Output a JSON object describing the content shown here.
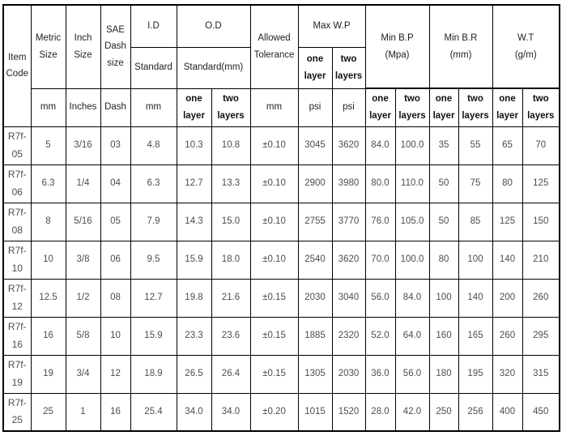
{
  "colors": {
    "border": "#000000",
    "header_text": "#1f1f1f",
    "data_text": "#4d4d4d",
    "background": "#ffffff"
  },
  "header": {
    "item_code": "Item\nCode",
    "metric_size": "Metric\nSize",
    "inch_size": "Inch\nSize",
    "sae_dash_size": "SAE\nDash\nsize",
    "id": "I.D",
    "id_standard": "Standard",
    "od": "O.D",
    "od_standard": "Standard(mm)",
    "allowed_tolerance": "Allowed\nTolerance",
    "max_wp": "Max W.P",
    "min_bp": "Min B.P\n(Mpa)",
    "min_br": "Min B.R\n(mm)",
    "wt": "W.T\n(g/m)",
    "one_layer": "one\nlayer",
    "two_layers": "two\nlayers"
  },
  "units": {
    "mm": "mm",
    "inches": "Inches",
    "dash": "Dash",
    "psi": "psi"
  },
  "rows": [
    [
      "R7f-05",
      "5",
      "3/16",
      "03",
      "4.8",
      "10.3",
      "10.8",
      "±0.10",
      "3045",
      "3620",
      "84.0",
      "100.0",
      "35",
      "55",
      "65",
      "70"
    ],
    [
      "R7f-06",
      "6.3",
      "1/4",
      "04",
      "6.3",
      "12.7",
      "13.3",
      "±0.10",
      "2900",
      "3980",
      "80.0",
      "110.0",
      "50",
      "75",
      "80",
      "125"
    ],
    [
      "R7f-08",
      "8",
      "5/16",
      "05",
      "7.9",
      "14.3",
      "15.0",
      "±0.10",
      "2755",
      "3770",
      "76.0",
      "105.0",
      "50",
      "85",
      "125",
      "150"
    ],
    [
      "R7f-10",
      "10",
      "3/8",
      "06",
      "9.5",
      "15.9",
      "18.0",
      "±0.10",
      "2540",
      "3620",
      "70.0",
      "100.0",
      "80",
      "100",
      "140",
      "210"
    ],
    [
      "R7f-12",
      "12.5",
      "1/2",
      "08",
      "12.7",
      "19.8",
      "21.6",
      "±0.15",
      "2030",
      "3040",
      "56.0",
      "84.0",
      "100",
      "140",
      "200",
      "260"
    ],
    [
      "R7f-16",
      "16",
      "5/8",
      "10",
      "15.9",
      "23.3",
      "23.6",
      "±0.15",
      "1885",
      "2320",
      "52.0",
      "64.0",
      "160",
      "165",
      "260",
      "295"
    ],
    [
      "R7f-19",
      "19",
      "3/4",
      "12",
      "18.9",
      "26.5",
      "26.4",
      "±0.15",
      "1305",
      "2030",
      "36.0",
      "56.0",
      "180",
      "195",
      "320",
      "315"
    ],
    [
      "R7f-25",
      "25",
      "1",
      "16",
      "25.4",
      "34.0",
      "34.0",
      "±0.20",
      "1015",
      "1520",
      "28.0",
      "42.0",
      "250",
      "256",
      "400",
      "450"
    ]
  ]
}
